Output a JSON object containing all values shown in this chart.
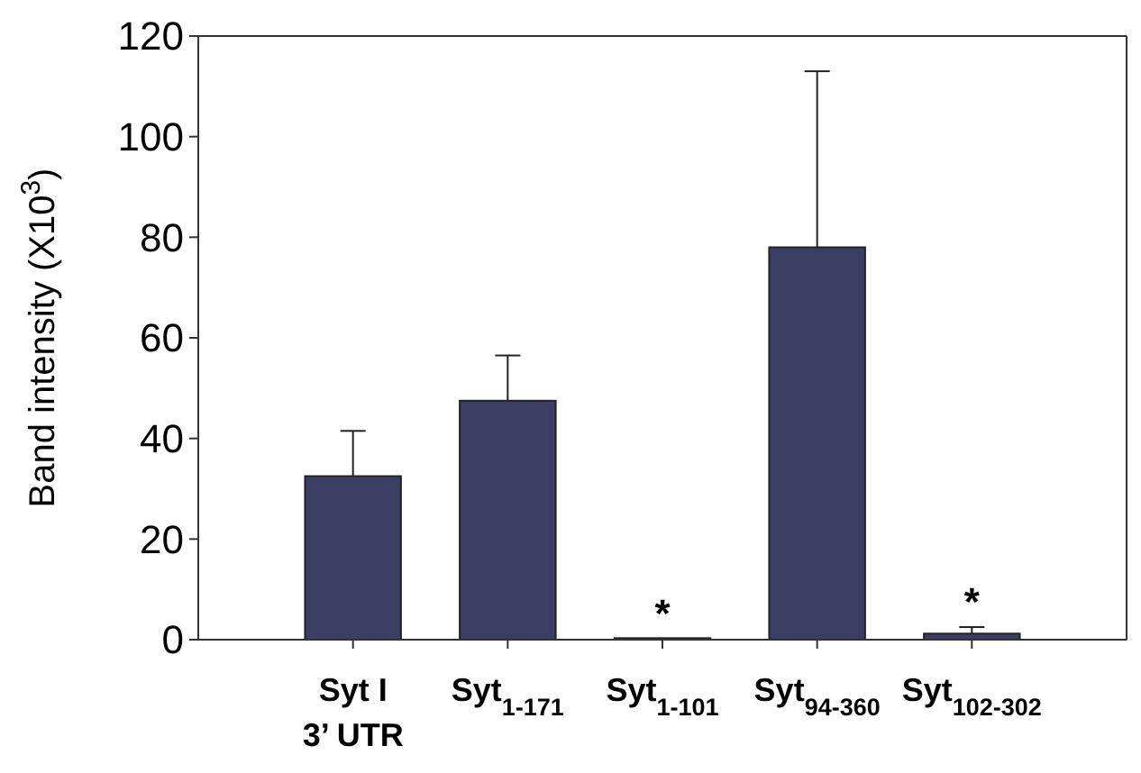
{
  "chart_data": {
    "type": "bar",
    "ylabel": "Band intensity (X10$^{3}$)",
    "categories": [
      "Syt I\n3’ UTR",
      "Syt$_{1-171}$",
      "Syt$_{1-101}$",
      "Syt$_{94-360}$",
      "Syt$_{102-302}$"
    ],
    "values": [
      32.5,
      47.5,
      0.3,
      78,
      1.2
    ],
    "errors": [
      [
        32.5,
        41.5
      ],
      [
        47.5,
        56.5
      ],
      null,
      [
        78,
        113
      ],
      [
        1.2,
        2.5
      ]
    ],
    "color": "#3b3e63",
    "ylim": [
      0,
      120
    ],
    "yticks": [
      0,
      20,
      40,
      60,
      80,
      100,
      120
    ],
    "annotations": [
      {
        "text": "*",
        "x": "Syt$_{1-101}$",
        "y": 0.3
      },
      {
        "text": "*",
        "x": "Syt$_{102-302}$",
        "y": 1.2
      }
    ]
  }
}
